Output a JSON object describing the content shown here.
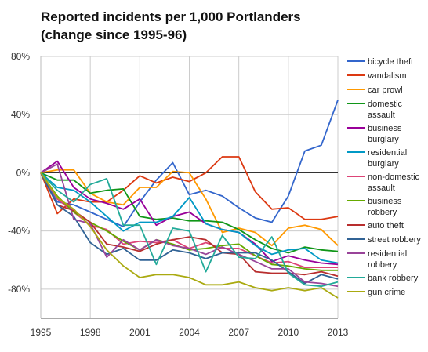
{
  "title_line1": "Reported incidents per 1,000 Portlanders",
  "title_line2": "(change since 1995-96)",
  "chart_data": {
    "type": "line",
    "title": "Reported incidents per 1,000 Portlanders (change since 1995-96)",
    "xlabel": "",
    "ylabel": "",
    "xlim": [
      1995,
      2013
    ],
    "ylim": [
      -100,
      80
    ],
    "x_ticks": [
      1995,
      1998,
      2001,
      2004,
      2007,
      2010,
      2013
    ],
    "y_ticks": [
      80,
      40,
      0,
      -40,
      -80
    ],
    "y_tick_labels": [
      "80%",
      "40%",
      "0%",
      "-40%",
      "-80%"
    ],
    "x": [
      1995,
      1996,
      1997,
      1998,
      1999,
      2000,
      2001,
      2002,
      2003,
      2004,
      2005,
      2006,
      2007,
      2008,
      2009,
      2010,
      2011,
      2012,
      2013
    ],
    "grid": true,
    "legend_position": "right",
    "series": [
      {
        "name": "bicycle theft",
        "color": "#3366cc",
        "values": [
          0,
          -20,
          -22,
          -27,
          -32,
          -37,
          -20,
          -5,
          7,
          -15,
          -12,
          -16,
          -24,
          -31,
          -34,
          -16,
          15,
          19,
          50
        ]
      },
      {
        "name": "vandalism",
        "color": "#dc3912",
        "values": [
          0,
          -28,
          -18,
          -20,
          -20,
          -12,
          -2,
          -7,
          -3,
          -6,
          0,
          11,
          11,
          -13,
          -25,
          -24,
          -32,
          -32,
          -30
        ]
      },
      {
        "name": "car prowl",
        "color": "#ff9900",
        "values": [
          0,
          2,
          2,
          -14,
          -20,
          -22,
          -10,
          -10,
          1,
          0,
          -18,
          -41,
          -38,
          -41,
          -50,
          -38,
          -36,
          -39,
          -50
        ]
      },
      {
        "name": "domestic assault",
        "color": "#109618",
        "values": [
          0,
          -5,
          -5,
          -14,
          -12,
          -11,
          -30,
          -32,
          -31,
          -33,
          -33,
          -34,
          -39,
          -46,
          -52,
          -55,
          -51,
          -53,
          -54
        ]
      },
      {
        "name": "business burglary",
        "color": "#990099",
        "values": [
          0,
          8,
          -10,
          -18,
          -21,
          -25,
          -18,
          -36,
          -30,
          -27,
          -35,
          -39,
          -41,
          -49,
          -61,
          -57,
          -60,
          -62,
          -63
        ]
      },
      {
        "name": "residential burglary",
        "color": "#0099c6",
        "values": [
          0,
          -10,
          -12,
          -20,
          -30,
          -40,
          -34,
          -34,
          -30,
          -17,
          -35,
          -39,
          -41,
          -50,
          -56,
          -53,
          -52,
          -60,
          -62
        ]
      },
      {
        "name": "non-domestic assault",
        "color": "#dd4477",
        "values": [
          0,
          -18,
          -27,
          -36,
          -39,
          -49,
          -47,
          -48,
          -46,
          -52,
          -48,
          -52,
          -52,
          -57,
          -62,
          -61,
          -65,
          -65,
          -65
        ]
      },
      {
        "name": "business robbery",
        "color": "#66aa00",
        "values": [
          0,
          -16,
          -27,
          -34,
          -40,
          -47,
          -53,
          -46,
          -49,
          -53,
          -52,
          -50,
          -49,
          -57,
          -63,
          -64,
          -66,
          -67,
          -67
        ]
      },
      {
        "name": "auto theft",
        "color": "#b82e2e",
        "values": [
          0,
          -22,
          -26,
          -34,
          -49,
          -51,
          -54,
          -49,
          -46,
          -44,
          -46,
          -55,
          -56,
          -68,
          -69,
          -69,
          -70,
          -68,
          -71
        ]
      },
      {
        "name": "street robbery",
        "color": "#316395",
        "values": [
          0,
          -22,
          -30,
          -48,
          -56,
          -52,
          -60,
          -60,
          -53,
          -55,
          -59,
          -55,
          -55,
          -55,
          -60,
          -68,
          -76,
          -70,
          -73
        ]
      },
      {
        "name": "residential robbery",
        "color": "#994499",
        "values": [
          0,
          6,
          -32,
          -35,
          -58,
          -46,
          -53,
          -46,
          -50,
          -52,
          -56,
          -51,
          -56,
          -61,
          -66,
          -66,
          -75,
          -76,
          -78
        ]
      },
      {
        "name": "bank robbery",
        "color": "#22aa99",
        "values": [
          0,
          -12,
          -20,
          -8,
          -4,
          -36,
          -36,
          -63,
          -38,
          -40,
          -68,
          -43,
          -58,
          -59,
          -44,
          -69,
          -77,
          -78,
          -75
        ]
      },
      {
        "name": "gun crime",
        "color": "#aaaa11",
        "values": [
          0,
          -17,
          -25,
          -37,
          -53,
          -64,
          -72,
          -70,
          -70,
          -72,
          -77,
          -77,
          -75,
          -79,
          -81,
          -79,
          -81,
          -79,
          -86
        ]
      }
    ]
  }
}
